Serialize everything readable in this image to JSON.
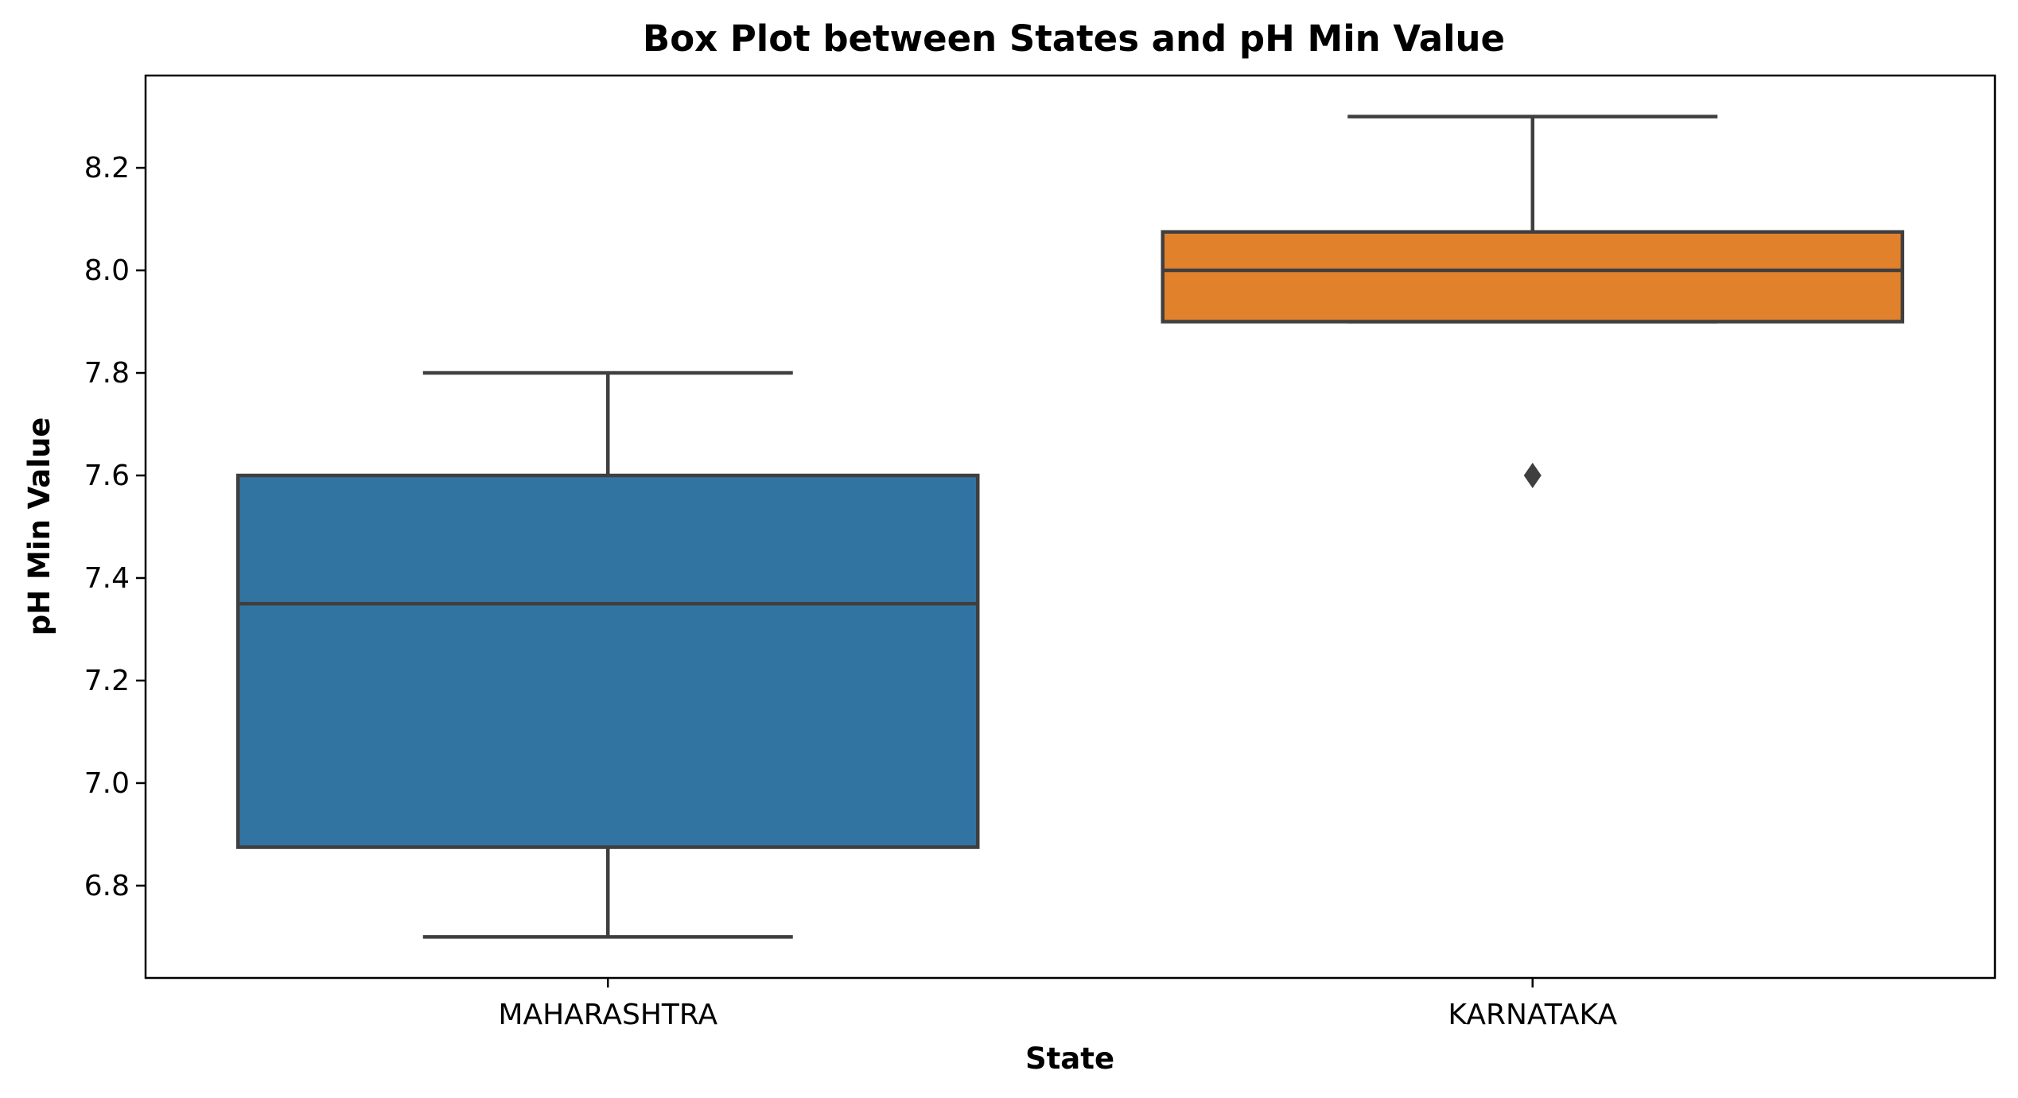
{
  "chart_data": {
    "type": "box",
    "title": "Box Plot between States and pH Min Value",
    "xlabel": "State",
    "ylabel": "pH Min Value",
    "ylim": [
      6.62,
      8.38
    ],
    "yticks": [
      6.8,
      7.0,
      7.2,
      7.4,
      7.6,
      7.8,
      8.0,
      8.2
    ],
    "ytick_labels": [
      "6.8",
      "7.0",
      "7.2",
      "7.4",
      "7.6",
      "7.8",
      "8.0",
      "8.2"
    ],
    "categories": [
      "MAHARASHTRA",
      "KARNATAKA"
    ],
    "boxes": [
      {
        "category": "MAHARASHTRA",
        "whisker_low": 6.7,
        "q1": 6.875,
        "median": 7.35,
        "q3": 7.6,
        "whisker_high": 7.8,
        "outliers": [],
        "color": "#3274a1"
      },
      {
        "category": "KARNATAKA",
        "whisker_low": 7.9,
        "q1": 7.9,
        "median": 8.0,
        "q3": 8.075,
        "whisker_high": 8.3,
        "outliers": [
          7.6
        ],
        "color": "#e1812c"
      }
    ],
    "line_color": "#3f3f3f",
    "grid": false,
    "legend": "none"
  }
}
